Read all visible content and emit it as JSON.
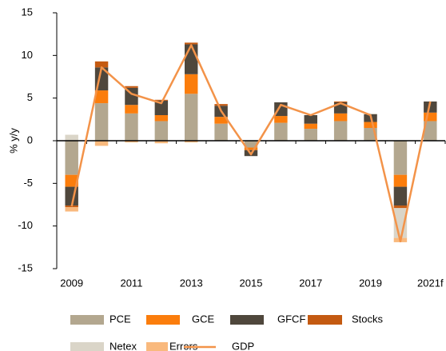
{
  "chart_data": {
    "type": "bar",
    "stacked": true,
    "y_label": "% y/y",
    "categories": [
      "2009",
      null,
      "2011",
      null,
      "2013",
      null,
      "2015",
      null,
      "2017",
      null,
      "2019",
      null,
      "2021f"
    ],
    "ylim": [
      -15,
      15
    ],
    "yticks": [
      -15,
      -10,
      -5,
      0,
      5,
      10,
      15
    ],
    "series": [
      {
        "name": "PCE",
        "color": "#b3a78f",
        "values": [
          -4.0,
          4.4,
          3.2,
          2.3,
          5.5,
          2.0,
          -0.8,
          2.1,
          1.4,
          2.3,
          1.5,
          -4.0,
          2.3
        ]
      },
      {
        "name": "GCE",
        "color": "#fb7d0c",
        "values": [
          -1.4,
          1.5,
          1.0,
          0.7,
          2.3,
          0.8,
          -0.3,
          0.8,
          0.6,
          0.9,
          0.7,
          -1.4,
          1.0
        ]
      },
      {
        "name": "GFCF",
        "color": "#4f473c",
        "values": [
          -2.2,
          2.7,
          2.0,
          1.7,
          3.5,
          1.3,
          -0.7,
          1.6,
          1.0,
          1.3,
          0.9,
          -2.2,
          1.3
        ]
      },
      {
        "name": "Stocks",
        "color": "#c45a11",
        "values": [
          -0.2,
          0.7,
          0.2,
          0.1,
          0.2,
          0.2,
          0.0,
          0.0,
          0.0,
          0.1,
          0.0,
          -0.3,
          0.0
        ]
      },
      {
        "name": "Netex",
        "color": "#dad5c8",
        "values": [
          0.7,
          0.0,
          0.0,
          0.0,
          0.0,
          0.0,
          0.0,
          0.0,
          0.0,
          0.0,
          0.1,
          -3.5,
          0.0
        ]
      },
      {
        "name": "Errors",
        "color": "#f9b97d",
        "values": [
          -0.5,
          -0.6,
          -0.2,
          -0.3,
          -0.2,
          0.0,
          0.0,
          0.0,
          0.0,
          0.0,
          0.0,
          -0.5,
          0.0
        ]
      },
      {
        "name": "GDP",
        "type": "line",
        "color": "#f39349",
        "values": [
          -7.7,
          8.6,
          5.5,
          4.4,
          11.2,
          3.5,
          -1.6,
          4.2,
          3.0,
          4.4,
          3.0,
          -11.8,
          4.6
        ]
      }
    ]
  }
}
